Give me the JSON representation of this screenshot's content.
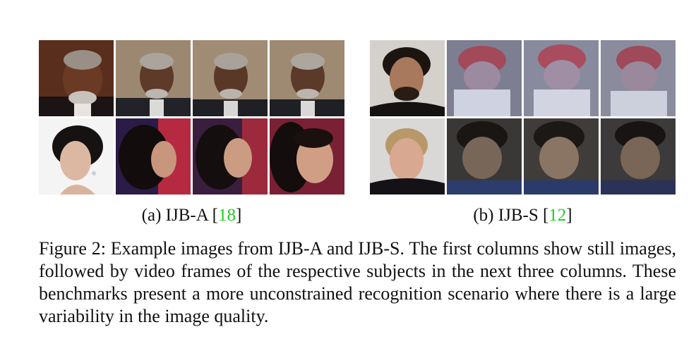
{
  "panels": [
    {
      "id": "a",
      "label_prefix": "(a) IJB-A [",
      "citation": "18",
      "label_suffix": "]",
      "rows": [
        {
          "subject": "older man with grey beard in dark suit",
          "tiles": [
            "still",
            "video-frame",
            "video-frame",
            "video-frame"
          ]
        },
        {
          "subject": "woman with dark hair and earrings",
          "tiles": [
            "still",
            "video-frame",
            "video-frame",
            "video-frame"
          ]
        }
      ]
    },
    {
      "id": "b",
      "label_prefix": "(b) IJB-S [",
      "citation": "12",
      "label_suffix": "]",
      "rows": [
        {
          "subject": "man with curly hair and beard",
          "tiles": [
            "still",
            "video-frame",
            "video-frame",
            "video-frame"
          ]
        },
        {
          "subject": "woman with blonde hair in black jacket",
          "tiles": [
            "still",
            "video-frame",
            "video-frame",
            "video-frame"
          ]
        }
      ]
    }
  ],
  "caption": {
    "text": "Figure 2: Example images from IJB-A and IJB-S. The first columns show still images, followed by video frames of the respective subjects in the next three columns. These benchmarks present a more unconstrained recognition scenario where there is a large variability in the image quality."
  }
}
